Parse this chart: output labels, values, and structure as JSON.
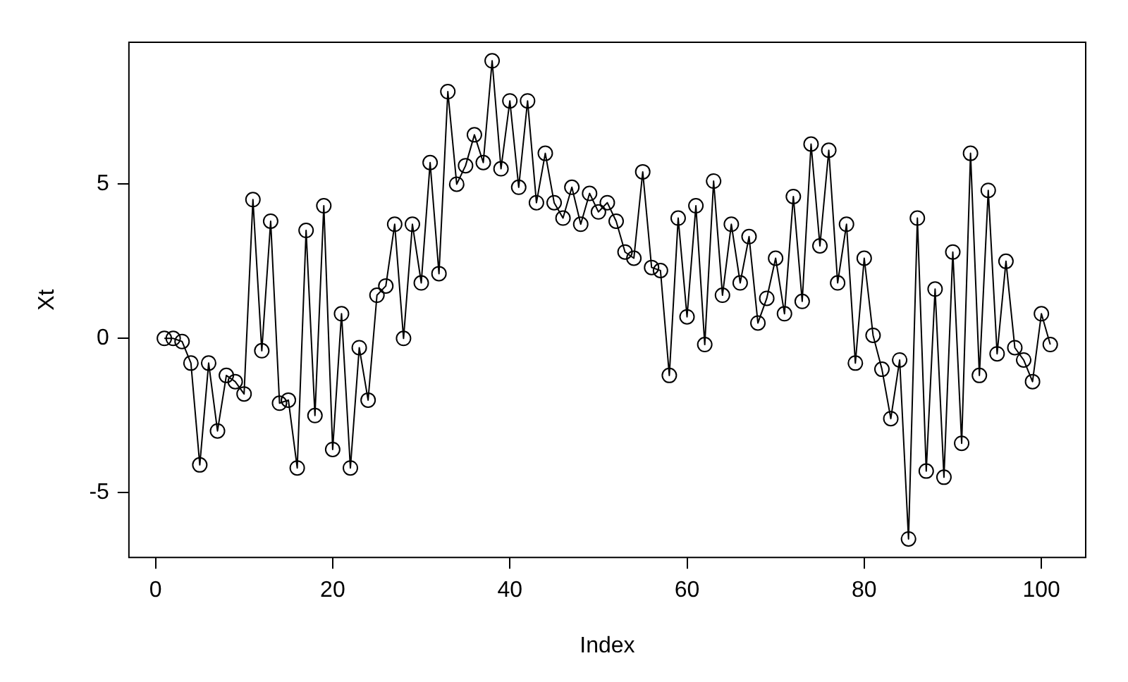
{
  "chart_data": {
    "type": "line",
    "xlabel": "Index",
    "ylabel": "Xt",
    "x": [
      1,
      2,
      3,
      4,
      5,
      6,
      7,
      8,
      9,
      10,
      11,
      12,
      13,
      14,
      15,
      16,
      17,
      18,
      19,
      20,
      21,
      22,
      23,
      24,
      25,
      26,
      27,
      28,
      29,
      30,
      31,
      32,
      33,
      34,
      35,
      36,
      37,
      38,
      39,
      40,
      41,
      42,
      43,
      44,
      45,
      46,
      47,
      48,
      49,
      50,
      51,
      52,
      53,
      54,
      55,
      56,
      57,
      58,
      59,
      60,
      61,
      62,
      63,
      64,
      65,
      66,
      67,
      68,
      69,
      70,
      71,
      72,
      73,
      74,
      75,
      76,
      77,
      78,
      79,
      80,
      81,
      82,
      83,
      84,
      85,
      86,
      87,
      88,
      89,
      90,
      91,
      92,
      93,
      94,
      95,
      96,
      97,
      98,
      99,
      100,
      101
    ],
    "series": [
      {
        "color": "#000000",
        "values": [
          0,
          0,
          -0.1,
          -0.8,
          -4.1,
          -0.8,
          -3.0,
          -1.2,
          -1.4,
          -1.8,
          4.5,
          -0.4,
          3.8,
          -2.1,
          -2.0,
          -4.2,
          3.5,
          -2.5,
          4.3,
          -3.6,
          0.8,
          -4.2,
          -0.3,
          -2.0,
          1.4,
          1.7,
          3.7,
          0.0,
          3.7,
          1.8,
          5.7,
          2.1,
          8.0,
          5.0,
          5.6,
          6.6,
          5.7,
          9.0,
          5.5,
          7.7,
          4.9,
          7.7,
          4.4,
          6.0,
          4.4,
          3.9,
          4.9,
          3.7,
          4.7,
          4.1,
          4.4,
          3.8,
          2.8,
          2.6,
          5.4,
          2.3,
          2.2,
          -1.2,
          3.9,
          0.7,
          4.3,
          -0.2,
          5.1,
          1.4,
          3.7,
          1.8,
          3.3,
          0.5,
          1.3,
          2.6,
          0.8,
          4.6,
          1.2,
          6.3,
          3.0,
          6.1,
          1.8,
          3.7,
          -0.8,
          2.6,
          0.1,
          -1.0,
          -2.6,
          -0.7,
          -6.5,
          3.9,
          -4.3,
          1.6,
          -4.5,
          2.8,
          -3.4,
          6.0,
          -1.2,
          4.8,
          -0.5,
          2.5,
          -0.3,
          -0.7,
          -1.4,
          0.8,
          -0.2
        ]
      }
    ],
    "xlim": [
      -3,
      105
    ],
    "ylim": [
      -7.1,
      9.6
    ],
    "xticks": [
      0,
      20,
      40,
      60,
      80,
      100
    ],
    "yticks": [
      -5,
      0,
      5
    ],
    "marker": "circle",
    "line_style": "solid",
    "grid": false,
    "legend": false
  }
}
